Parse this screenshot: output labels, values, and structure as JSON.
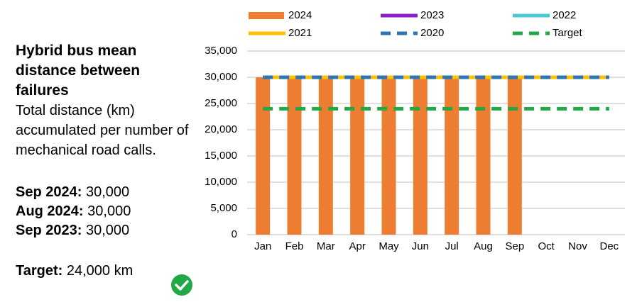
{
  "panel": {
    "title": "Hybrid bus mean distance between failures",
    "subtitle": "Total distance (km) accumulated per number of mechanical road calls.",
    "stats": [
      {
        "label": "Sep 2024:",
        "value": "30,000"
      },
      {
        "label": "Aug 2024:",
        "value": "30,000"
      },
      {
        "label": "Sep 2023:",
        "value": "30,000"
      }
    ],
    "target": {
      "label": "Target:",
      "value": "24,000 km"
    }
  },
  "chart_data": {
    "type": "bar",
    "categories": [
      "Jan",
      "Feb",
      "Mar",
      "Apr",
      "May",
      "Jun",
      "Jul",
      "Aug",
      "Sep",
      "Oct",
      "Nov",
      "Dec"
    ],
    "series": [
      {
        "name": "2024",
        "style": "bar",
        "color": "#ed7d31",
        "values": [
          30000,
          30000,
          30000,
          30000,
          30000,
          30000,
          30000,
          30000,
          30000,
          null,
          null,
          null
        ]
      },
      {
        "name": "2023",
        "style": "line",
        "color": "#8a1fc9",
        "dashed": false,
        "values": [
          30000,
          30000,
          30000,
          30000,
          30000,
          30000,
          30000,
          30000,
          30000,
          30000,
          30000,
          30000
        ]
      },
      {
        "name": "2022",
        "style": "line",
        "color": "#4cc9d0",
        "dashed": false,
        "values": [
          30000,
          30000,
          30000,
          30000,
          30000,
          30000,
          30000,
          30000,
          30000,
          30000,
          30000,
          30000
        ]
      },
      {
        "name": "2021",
        "style": "line",
        "color": "#ffc000",
        "dashed": false,
        "values": [
          30000,
          30000,
          30000,
          30000,
          30000,
          30000,
          30000,
          30000,
          30000,
          30000,
          30000,
          30000
        ]
      },
      {
        "name": "2020",
        "style": "line",
        "color": "#2e75b6",
        "dashed": true,
        "values": [
          30000,
          30000,
          30000,
          30000,
          30000,
          30000,
          30000,
          30000,
          30000,
          30000,
          30000,
          30000
        ]
      },
      {
        "name": "Target",
        "style": "line",
        "color": "#22a845",
        "dashed": true,
        "values": [
          24000,
          24000,
          24000,
          24000,
          24000,
          24000,
          24000,
          24000,
          24000,
          24000,
          24000,
          24000
        ]
      }
    ],
    "ylim": [
      0,
      35000
    ],
    "yticks": [
      0,
      {
        "value": 5000,
        "label": "5,000"
      },
      {
        "value": 10000,
        "label": "10,000"
      },
      {
        "value": 15000,
        "label": "15,000"
      },
      {
        "value": 20000,
        "label": "20,000"
      },
      {
        "value": 25000,
        "label": "25,000"
      },
      {
        "value": 30000,
        "label": "30,000"
      },
      {
        "value": 35000,
        "label": "35,000"
      }
    ],
    "grid": true
  }
}
